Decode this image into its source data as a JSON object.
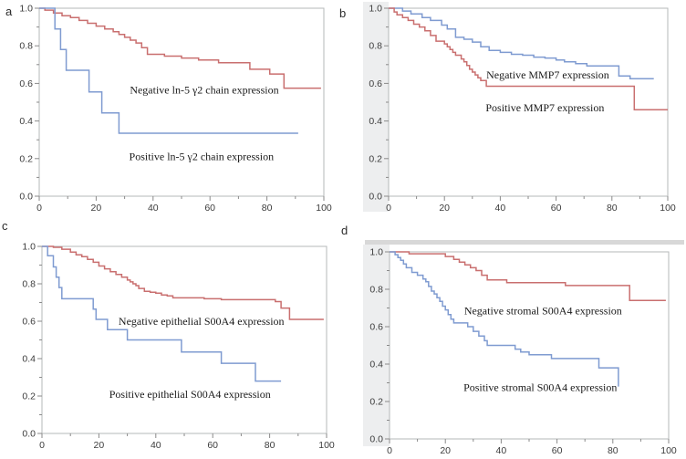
{
  "figure": {
    "description": "Kaplan-Meier survival curves, four panels",
    "background_color": "#ffffff",
    "frame_color": "#b5b8ba",
    "tick_color": "#8a8a8a",
    "tick_label_color": "#3c3c3c",
    "annotation_color": "#1a1a1a",
    "red": "#c96f6f",
    "blue": "#7f9bd1"
  },
  "chart_data": [
    {
      "panel_label": "a",
      "type": "line",
      "subtype": "km_step",
      "xlim": [
        0,
        100
      ],
      "ylim": [
        0.0,
        1.0
      ],
      "xticks": [
        0,
        20,
        40,
        60,
        80,
        100
      ],
      "yticks": [
        0.0,
        0.2,
        0.4,
        0.6,
        0.8,
        1.0
      ],
      "x_minor_step": 10,
      "y_minor_step": 0.1,
      "grid": false,
      "legend_position": "none",
      "series": [
        {
          "name": "Negative ln-5 γ2 chain expression",
          "color": "#c96f6f",
          "x": [
            0,
            2,
            5,
            8,
            11,
            14,
            17,
            20,
            23,
            26,
            28,
            30,
            32,
            34,
            36,
            38,
            44,
            50,
            56,
            63,
            74,
            81,
            86,
            99
          ],
          "y": [
            1.0,
            0.99,
            0.975,
            0.96,
            0.95,
            0.935,
            0.92,
            0.905,
            0.89,
            0.875,
            0.86,
            0.845,
            0.83,
            0.815,
            0.79,
            0.755,
            0.745,
            0.735,
            0.725,
            0.71,
            0.675,
            0.65,
            0.575,
            0.575
          ]
        },
        {
          "name": "Positive ln-5 γ2 chain expression",
          "color": "#7f9bd1",
          "x": [
            0,
            5.5,
            7.5,
            9.5,
            17.5,
            22,
            28,
            91
          ],
          "y": [
            1.0,
            0.89,
            0.78,
            0.67,
            0.555,
            0.443,
            0.335,
            0.335
          ]
        }
      ],
      "annotations": [
        {
          "text": "Negative ln-5 γ2 chain expression",
          "x": 58,
          "y": 0.565
        },
        {
          "text": "Positive ln-5 γ2 chain expression",
          "x": 57,
          "y": 0.21
        }
      ]
    },
    {
      "panel_label": "b",
      "type": "line",
      "subtype": "km_step",
      "xlim": [
        0,
        100
      ],
      "ylim": [
        0.0,
        1.0
      ],
      "xticks": [
        0,
        20,
        40,
        60,
        80,
        100
      ],
      "yticks": [
        0.0,
        0.2,
        0.4,
        0.6,
        0.8,
        1.0
      ],
      "x_minor_step": 10,
      "y_minor_step": 0.1,
      "grid": false,
      "legend_position": "none",
      "series": [
        {
          "name": "Negative MMP7 expression",
          "color": "#7f9bd1",
          "x": [
            0,
            5,
            8,
            12,
            15,
            19,
            21,
            24,
            27,
            30,
            33,
            36,
            40,
            44,
            48,
            52,
            56,
            60,
            63,
            67,
            71,
            82.5,
            86.5,
            95
          ],
          "y": [
            1.0,
            0.985,
            0.97,
            0.95,
            0.935,
            0.91,
            0.89,
            0.845,
            0.835,
            0.82,
            0.795,
            0.775,
            0.765,
            0.755,
            0.75,
            0.74,
            0.735,
            0.725,
            0.715,
            0.705,
            0.693,
            0.64,
            0.625,
            0.625
          ]
        },
        {
          "name": "Positive MMP7 expression",
          "color": "#c96f6f",
          "x": [
            0,
            2,
            3,
            5,
            7,
            9,
            11,
            13,
            15,
            17,
            20,
            21,
            22,
            23,
            24,
            26,
            27,
            28,
            29,
            30,
            31,
            32,
            33,
            35,
            88,
            100
          ],
          "y": [
            1.0,
            0.98,
            0.965,
            0.95,
            0.935,
            0.915,
            0.9,
            0.88,
            0.855,
            0.825,
            0.81,
            0.795,
            0.78,
            0.765,
            0.75,
            0.73,
            0.715,
            0.695,
            0.675,
            0.66,
            0.645,
            0.63,
            0.615,
            0.585,
            0.46,
            0.46
          ]
        }
      ],
      "annotations": [
        {
          "text": "Negative MMP7 expression",
          "x": 57,
          "y": 0.645
        },
        {
          "text": "Positive MMP7 expression",
          "x": 56,
          "y": 0.47
        }
      ]
    },
    {
      "panel_label": "c",
      "type": "line",
      "subtype": "km_step",
      "xlim": [
        0,
        100
      ],
      "ylim": [
        0.0,
        1.0
      ],
      "xticks": [
        0,
        20,
        40,
        60,
        80,
        100
      ],
      "yticks": [
        0.0,
        0.2,
        0.4,
        0.6,
        0.8,
        1.0
      ],
      "x_minor_step": 10,
      "y_minor_step": 0.1,
      "grid": false,
      "legend_position": "none",
      "series": [
        {
          "name": "Negative epithelial S00A4 expression",
          "color": "#c96f6f",
          "x": [
            0,
            4,
            7,
            10,
            12,
            14,
            16,
            18,
            20,
            22,
            24,
            26,
            28,
            30,
            31,
            32,
            33,
            34,
            36,
            38,
            40,
            42,
            44,
            46,
            57,
            63,
            82,
            84,
            87,
            99
          ],
          "y": [
            1.0,
            0.995,
            0.985,
            0.97,
            0.955,
            0.945,
            0.93,
            0.915,
            0.895,
            0.88,
            0.865,
            0.85,
            0.835,
            0.82,
            0.81,
            0.8,
            0.79,
            0.775,
            0.76,
            0.755,
            0.75,
            0.74,
            0.735,
            0.725,
            0.72,
            0.715,
            0.705,
            0.67,
            0.61,
            0.61
          ]
        },
        {
          "name": "Positive epithelial S00A4 expression",
          "color": "#7f9bd1",
          "x": [
            0,
            2,
            4,
            5,
            6,
            7,
            18,
            19,
            23,
            30,
            49,
            63,
            75,
            84
          ],
          "y": [
            1.0,
            0.95,
            0.89,
            0.835,
            0.78,
            0.72,
            0.665,
            0.61,
            0.555,
            0.5,
            0.435,
            0.375,
            0.28,
            0.28
          ]
        }
      ],
      "annotations": [
        {
          "text": "Negative epithelial S00A4 expression",
          "x": 56,
          "y": 0.6
        },
        {
          "text": "Positive epithelial S00A4 expression",
          "x": 52,
          "y": 0.21
        }
      ]
    },
    {
      "panel_label": "d",
      "type": "line",
      "subtype": "km_step",
      "xlim": [
        0,
        100
      ],
      "ylim": [
        0.0,
        1.0
      ],
      "xticks": [
        0,
        20,
        40,
        60,
        80,
        100
      ],
      "yticks": [
        0.0,
        0.2,
        0.4,
        0.6,
        0.8,
        1.0
      ],
      "x_minor_step": 10,
      "y_minor_step": 0.1,
      "grid": false,
      "legend_position": "none",
      "series": [
        {
          "name": "Negative stromal S00A4 expression",
          "color": "#c96f6f",
          "x": [
            0,
            7,
            20,
            23,
            25,
            27,
            29,
            31,
            33,
            35,
            42,
            63,
            86,
            99
          ],
          "y": [
            1.0,
            0.99,
            0.975,
            0.96,
            0.945,
            0.93,
            0.915,
            0.9,
            0.875,
            0.85,
            0.835,
            0.82,
            0.74,
            0.74
          ]
        },
        {
          "name": "Positive stromal S00A4 expression",
          "color": "#7f9bd1",
          "x": [
            0,
            2,
            3,
            4,
            5,
            6,
            8,
            10,
            12,
            13,
            14,
            15,
            16,
            17,
            18,
            19,
            20,
            21,
            22,
            23,
            28,
            30,
            32,
            34,
            35,
            45,
            47,
            50,
            58,
            60,
            75,
            82
          ],
          "y": [
            1.0,
            0.985,
            0.97,
            0.955,
            0.935,
            0.915,
            0.89,
            0.875,
            0.855,
            0.84,
            0.815,
            0.79,
            0.775,
            0.755,
            0.735,
            0.71,
            0.69,
            0.665,
            0.64,
            0.62,
            0.6,
            0.575,
            0.55,
            0.525,
            0.5,
            0.48,
            0.465,
            0.45,
            0.43,
            0.43,
            0.38,
            0.28
          ]
        }
      ],
      "annotations": [
        {
          "text": "Negative stromal S00A4 expression",
          "x": 55,
          "y": 0.685
        },
        {
          "text": "Positive stromal S00A4 expression",
          "x": 54,
          "y": 0.275
        }
      ]
    }
  ]
}
